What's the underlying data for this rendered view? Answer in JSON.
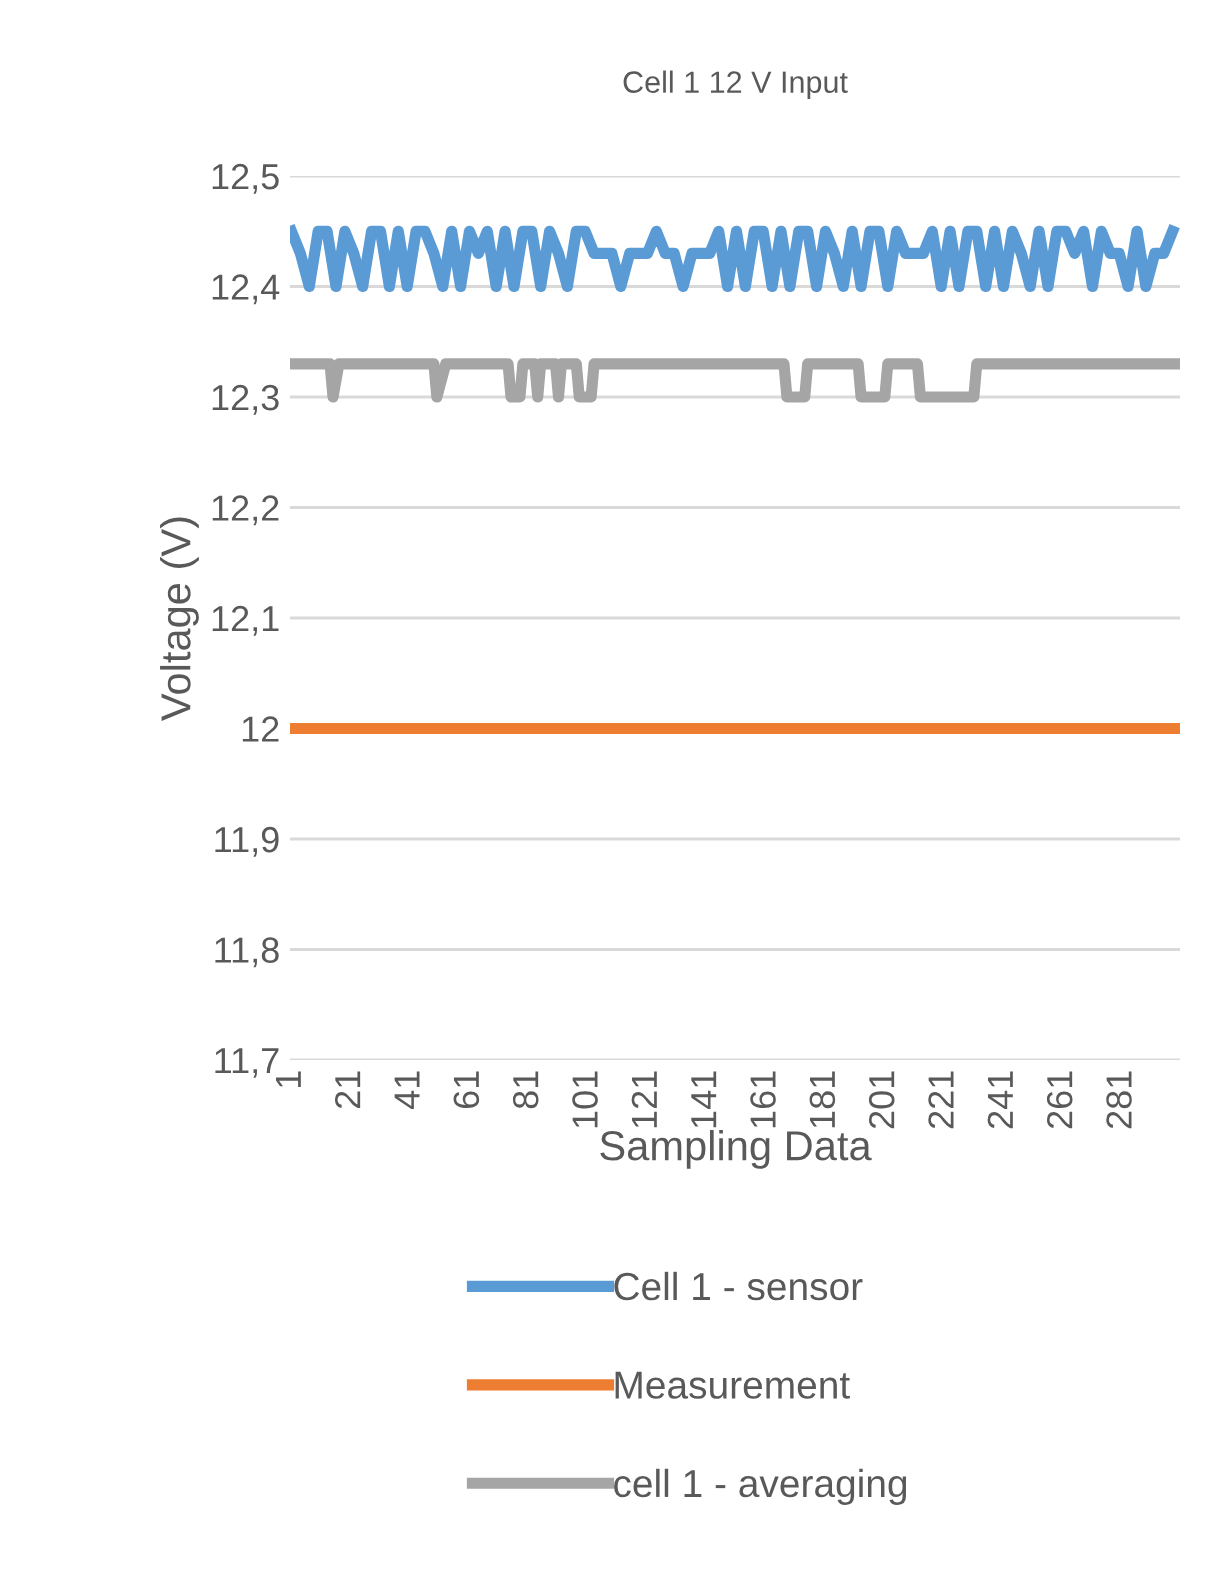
{
  "chart_data": {
    "type": "line",
    "title": "Cell 1 12 V Input",
    "xlabel": "Sampling Data",
    "ylabel": "Voltage (V)",
    "xlim": [
      0.5,
      300.5
    ],
    "xticks": [
      1,
      21,
      41,
      61,
      81,
      101,
      121,
      141,
      161,
      181,
      201,
      221,
      241,
      261,
      281
    ],
    "ylim": [
      11.7,
      12.5
    ],
    "yticks": [
      {
        "value": 11.7,
        "label": "11,7"
      },
      {
        "value": 11.8,
        "label": "11,8"
      },
      {
        "value": 11.9,
        "label": "11,9"
      },
      {
        "value": 12,
        "label": "12"
      },
      {
        "value": 12.1,
        "label": "12,1"
      },
      {
        "value": 12.2,
        "label": "12,2"
      },
      {
        "value": 12.3,
        "label": "12,3"
      },
      {
        "value": 12.4,
        "label": "12,4"
      },
      {
        "value": 12.5,
        "label": "12,5"
      }
    ],
    "grid": "y",
    "legend": "bottom",
    "marker": "none",
    "line_style": "solid",
    "series": [
      {
        "name": "Cell 1 - sensor",
        "color": "#5b9bd5",
        "x": [
          1,
          4,
          7,
          10,
          13,
          16,
          19,
          22,
          25,
          28,
          31,
          34,
          37,
          40,
          43,
          46,
          49,
          52,
          55,
          58,
          61,
          64,
          67,
          70,
          73,
          76,
          79,
          82,
          85,
          88,
          91,
          94,
          97,
          100,
          103,
          106,
          109,
          112,
          115,
          118,
          121,
          124,
          127,
          130,
          133,
          136,
          139,
          142,
          145,
          148,
          151,
          154,
          157,
          160,
          163,
          166,
          169,
          172,
          175,
          178,
          181,
          184,
          187,
          190,
          193,
          196,
          199,
          202,
          205,
          208,
          211,
          214,
          217,
          220,
          223,
          226,
          229,
          232,
          235,
          238,
          241,
          244,
          247,
          250,
          253,
          256,
          259,
          262,
          265,
          268,
          271,
          274,
          277,
          280,
          283,
          286,
          289,
          292,
          295,
          298
        ],
        "values": [
          12.45,
          12.43,
          12.4,
          12.45,
          12.45,
          12.4,
          12.45,
          12.43,
          12.4,
          12.45,
          12.45,
          12.4,
          12.45,
          12.4,
          12.45,
          12.45,
          12.43,
          12.4,
          12.45,
          12.4,
          12.45,
          12.43,
          12.45,
          12.4,
          12.45,
          12.4,
          12.45,
          12.45,
          12.4,
          12.45,
          12.43,
          12.4,
          12.45,
          12.45,
          12.43,
          12.43,
          12.43,
          12.4,
          12.43,
          12.43,
          12.43,
          12.45,
          12.43,
          12.43,
          12.4,
          12.43,
          12.43,
          12.43,
          12.45,
          12.4,
          12.45,
          12.4,
          12.45,
          12.45,
          12.4,
          12.45,
          12.4,
          12.45,
          12.45,
          12.4,
          12.45,
          12.43,
          12.4,
          12.45,
          12.4,
          12.45,
          12.45,
          12.4,
          12.45,
          12.43,
          12.43,
          12.43,
          12.45,
          12.4,
          12.45,
          12.4,
          12.45,
          12.45,
          12.4,
          12.45,
          12.4,
          12.45,
          12.43,
          12.4,
          12.45,
          12.4,
          12.45,
          12.45,
          12.43,
          12.45,
          12.4,
          12.45,
          12.43,
          12.43,
          12.4,
          12.45,
          12.4,
          12.43,
          12.43,
          12.45
        ]
      },
      {
        "name": "Measurement",
        "color": "#ed7d31",
        "x": [
          1,
          300
        ],
        "values": [
          12,
          12
        ]
      },
      {
        "name": "cell 1 - averaging",
        "color": "#a5a5a5",
        "x": [
          1,
          14,
          15,
          17,
          49,
          50,
          53,
          74,
          75,
          78,
          79,
          83,
          84,
          85,
          90,
          91,
          92,
          97,
          98,
          102,
          103,
          167,
          168,
          174,
          175,
          192,
          193,
          201,
          202,
          212,
          213,
          231,
          232,
          300
        ],
        "values": [
          12.33,
          12.33,
          12.3,
          12.33,
          12.33,
          12.3,
          12.33,
          12.33,
          12.3,
          12.3,
          12.33,
          12.33,
          12.3,
          12.33,
          12.33,
          12.3,
          12.33,
          12.33,
          12.3,
          12.3,
          12.33,
          12.33,
          12.3,
          12.3,
          12.33,
          12.33,
          12.3,
          12.3,
          12.33,
          12.33,
          12.3,
          12.3,
          12.33,
          12.33
        ]
      }
    ]
  }
}
